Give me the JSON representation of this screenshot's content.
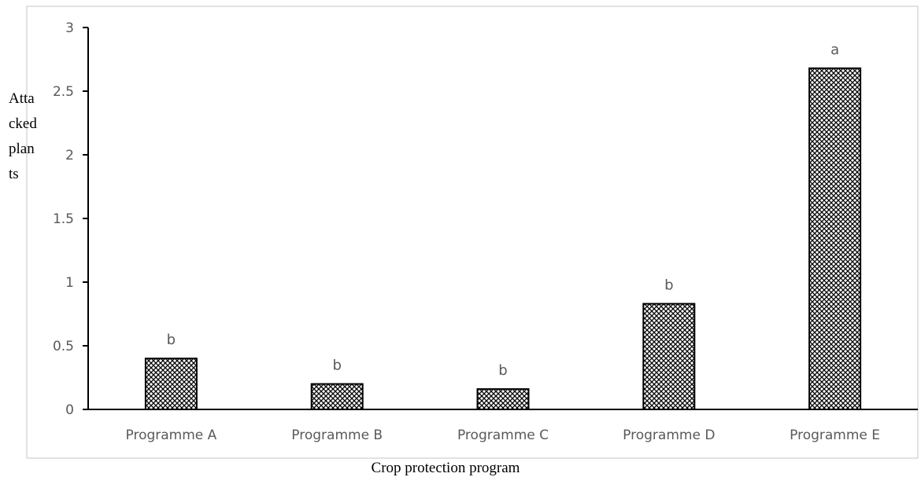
{
  "chart_data": {
    "type": "bar",
    "title": "",
    "xlabel": "Crop protection program",
    "ylabel_lines": [
      "Atta",
      "cked",
      "plan",
      "ts"
    ],
    "categories": [
      "Programme A",
      "Programme B",
      "Programme C",
      "Programme D",
      "Programme E"
    ],
    "values": [
      0.4,
      0.2,
      0.16,
      0.83,
      2.68
    ],
    "significance_letters": [
      "b",
      "b",
      "b",
      "b",
      "a"
    ],
    "ylim": [
      0,
      3
    ],
    "yticks": [
      0,
      0.5,
      1,
      1.5,
      2,
      2.5,
      3
    ],
    "ytick_labels": [
      "0",
      "0.5",
      "1",
      "1.5",
      "2",
      "2.5",
      "3"
    ],
    "grid": false,
    "legend": "none",
    "bar_fill": "crosshatch-pattern",
    "colors": {
      "bar_stroke": "#000000",
      "axis": "#000000",
      "tick_text": "#595959",
      "frame": "#d9d9d9"
    }
  }
}
